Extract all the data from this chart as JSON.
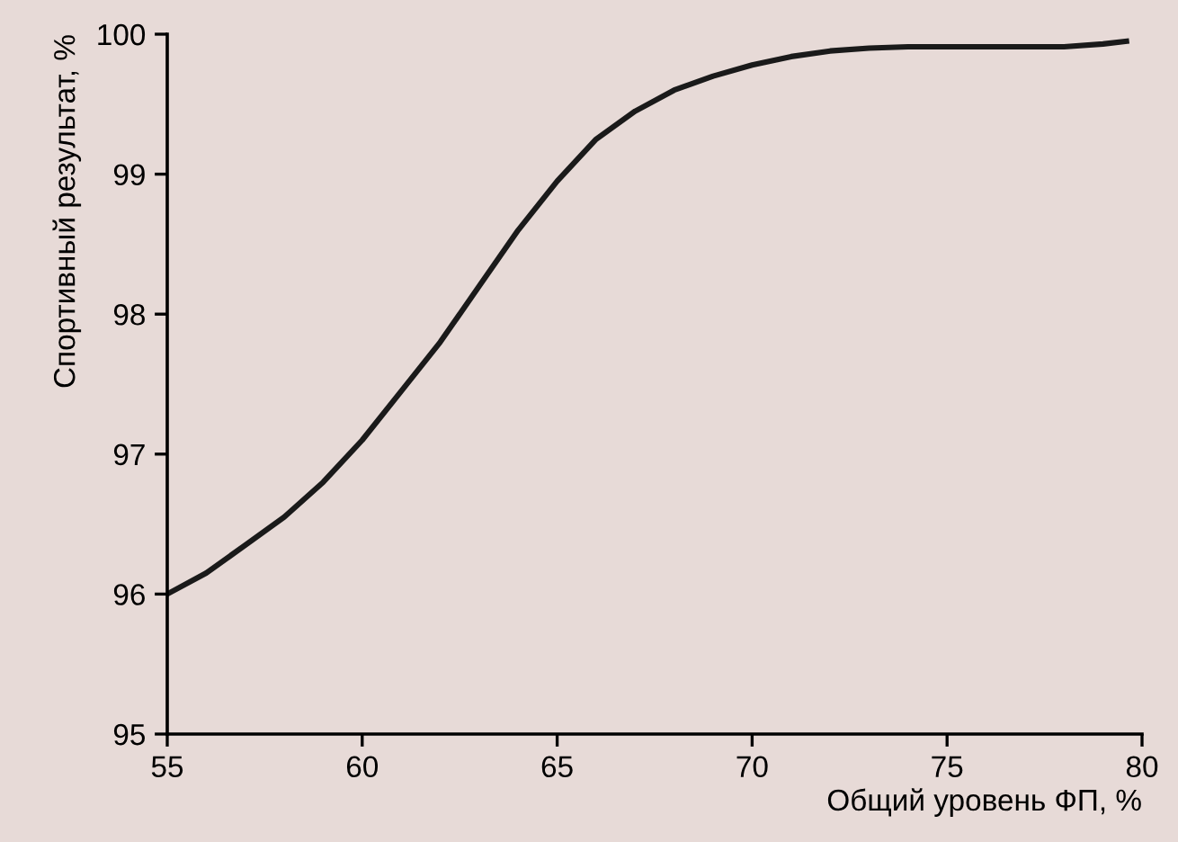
{
  "chart_data": {
    "type": "line",
    "xlabel": "Общий уровень ФП, %",
    "ylabel": "Спортивный результат, %",
    "xlim": [
      55,
      80
    ],
    "xticks": [
      55,
      60,
      65,
      70,
      75,
      80
    ],
    "ylim": [
      95,
      100
    ],
    "yticks": [
      95,
      96,
      97,
      98,
      99,
      100
    ],
    "grid": false,
    "legend": false,
    "marker": "none",
    "line_style": "solid",
    "series": [
      {
        "color": "#1a1a1a",
        "x": [
          55,
          56,
          57,
          58,
          59,
          60,
          61,
          62,
          63,
          64,
          65,
          66,
          67,
          68,
          69,
          70,
          71,
          72,
          73,
          74,
          75,
          76,
          77,
          78,
          79,
          79.6
        ],
        "values": [
          96.0,
          96.15,
          96.35,
          96.55,
          96.8,
          97.1,
          97.45,
          97.8,
          98.2,
          98.6,
          98.95,
          99.25,
          99.45,
          99.6,
          99.7,
          99.78,
          99.84,
          99.88,
          99.9,
          99.91,
          99.91,
          99.91,
          99.91,
          99.91,
          99.93,
          99.95
        ]
      }
    ]
  }
}
